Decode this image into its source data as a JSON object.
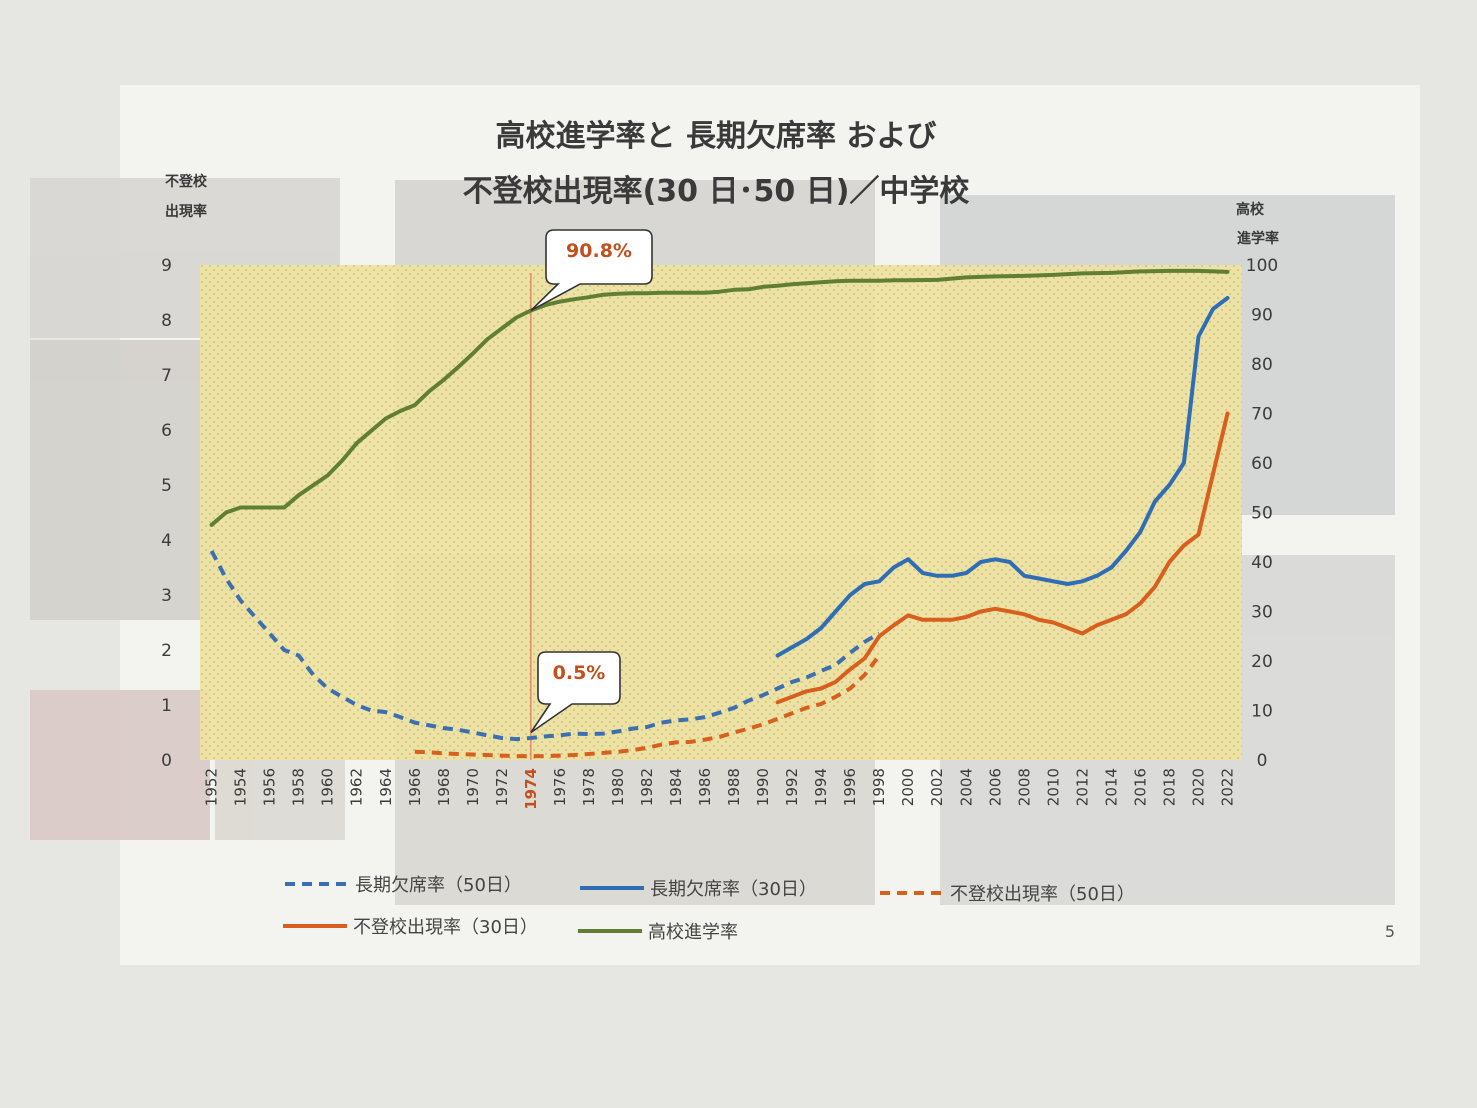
{
  "chart_data": {
    "type": "line",
    "title": [
      "高校進学率と 長期欠席率 および",
      "不登校出現率(30 日･50 日)／中学校"
    ],
    "y_left_label": [
      "不登校",
      "出現率"
    ],
    "y_right_label": [
      "高校",
      "進学率"
    ],
    "ylim_left": [
      0,
      9
    ],
    "ylim_right": [
      0,
      100
    ],
    "left_ticks": [
      0,
      1,
      2,
      3,
      4,
      5,
      6,
      7,
      8,
      9
    ],
    "right_ticks": [
      0,
      10,
      20,
      30,
      40,
      50,
      60,
      70,
      80,
      90,
      100
    ],
    "x_ticks": [
      1952,
      1954,
      1956,
      1958,
      1960,
      1962,
      1964,
      1966,
      1968,
      1970,
      1972,
      1974,
      1976,
      1978,
      1980,
      1982,
      1984,
      1986,
      1988,
      1990,
      1992,
      1994,
      1996,
      1998,
      2000,
      2002,
      2004,
      2006,
      2008,
      2010,
      2012,
      2014,
      2016,
      2018,
      2020,
      2022
    ],
    "highlight_year": 1974,
    "callouts": [
      {
        "text": "90.8%",
        "x": 1974,
        "y": 90.8,
        "axis": "right"
      },
      {
        "text": "0.5%",
        "x": 1974,
        "y": 0.5,
        "axis": "left"
      }
    ],
    "grid": false,
    "legend_position": "bottom",
    "series": [
      {
        "name": "長期欠席率（50日）",
        "axis": "left",
        "style": "dashed",
        "color": "#3c6fb0",
        "x": [
          1952,
          1953,
          1954,
          1955,
          1956,
          1957,
          1958,
          1959,
          1960,
          1961,
          1962,
          1963,
          1964,
          1965,
          1966,
          1967,
          1968,
          1969,
          1970,
          1971,
          1972,
          1973,
          1974,
          1975,
          1976,
          1977,
          1978,
          1979,
          1980,
          1981,
          1982,
          1983,
          1984,
          1985,
          1986,
          1987,
          1988,
          1989,
          1990,
          1991,
          1992,
          1993,
          1994,
          1995,
          1996,
          1997,
          1998
        ],
        "y": [
          3.8,
          3.3,
          2.9,
          2.6,
          2.3,
          2.0,
          1.9,
          1.55,
          1.3,
          1.15,
          1.0,
          0.9,
          0.87,
          0.78,
          0.68,
          0.63,
          0.58,
          0.55,
          0.5,
          0.45,
          0.4,
          0.38,
          0.4,
          0.43,
          0.45,
          0.48,
          0.47,
          0.48,
          0.52,
          0.57,
          0.6,
          0.68,
          0.72,
          0.74,
          0.78,
          0.86,
          0.95,
          1.08,
          1.18,
          1.3,
          1.42,
          1.5,
          1.62,
          1.73,
          1.95,
          2.15,
          2.3
        ]
      },
      {
        "name": "長期欠席率（30日）",
        "axis": "left",
        "style": "solid",
        "color": "#2f6db5",
        "x": [
          1991,
          1992,
          1993,
          1994,
          1995,
          1996,
          1997,
          1998,
          1999,
          2000,
          2001,
          2002,
          2003,
          2004,
          2005,
          2006,
          2007,
          2008,
          2009,
          2010,
          2011,
          2012,
          2013,
          2014,
          2015,
          2016,
          2017,
          2018,
          2019,
          2020,
          2021,
          2022
        ],
        "y": [
          1.9,
          2.05,
          2.2,
          2.4,
          2.7,
          3.0,
          3.2,
          3.25,
          3.5,
          3.65,
          3.4,
          3.35,
          3.35,
          3.4,
          3.6,
          3.65,
          3.6,
          3.35,
          3.3,
          3.25,
          3.2,
          3.25,
          3.35,
          3.5,
          3.8,
          4.15,
          4.7,
          5.0,
          5.4,
          7.7,
          8.2,
          8.4
        ]
      },
      {
        "name": "不登校出現率（50日）",
        "axis": "left",
        "style": "dashed",
        "color": "#d85f1e",
        "x": [
          1966,
          1967,
          1968,
          1969,
          1970,
          1971,
          1972,
          1973,
          1974,
          1975,
          1976,
          1977,
          1978,
          1979,
          1980,
          1981,
          1982,
          1983,
          1984,
          1985,
          1986,
          1987,
          1988,
          1989,
          1990,
          1991,
          1992,
          1993,
          1994,
          1995,
          1996,
          1997,
          1998
        ],
        "y": [
          0.15,
          0.14,
          0.12,
          0.11,
          0.1,
          0.09,
          0.08,
          0.07,
          0.07,
          0.07,
          0.08,
          0.09,
          0.11,
          0.13,
          0.15,
          0.18,
          0.22,
          0.28,
          0.32,
          0.33,
          0.37,
          0.42,
          0.5,
          0.57,
          0.65,
          0.75,
          0.85,
          0.95,
          1.02,
          1.15,
          1.3,
          1.55,
          1.9
        ]
      },
      {
        "name": "不登校出現率（30日）",
        "axis": "left",
        "style": "solid",
        "color": "#d85f1e",
        "x": [
          1991,
          1992,
          1993,
          1994,
          1995,
          1996,
          1997,
          1998,
          1999,
          2000,
          2001,
          2002,
          2003,
          2004,
          2005,
          2006,
          2007,
          2008,
          2009,
          2010,
          2011,
          2012,
          2013,
          2014,
          2015,
          2016,
          2017,
          2018,
          2019,
          2020,
          2021,
          2022
        ],
        "y": [
          1.05,
          1.15,
          1.25,
          1.3,
          1.42,
          1.65,
          1.85,
          2.25,
          2.45,
          2.63,
          2.55,
          2.55,
          2.55,
          2.6,
          2.7,
          2.75,
          2.7,
          2.65,
          2.55,
          2.5,
          2.4,
          2.3,
          2.45,
          2.55,
          2.65,
          2.85,
          3.15,
          3.6,
          3.9,
          4.1,
          5.2,
          6.3
        ]
      },
      {
        "name": "高校進学率",
        "axis": "right",
        "style": "solid",
        "color": "#617f34",
        "x": [
          1952,
          1953,
          1954,
          1955,
          1956,
          1957,
          1958,
          1959,
          1960,
          1961,
          1962,
          1963,
          1964,
          1965,
          1966,
          1967,
          1968,
          1969,
          1970,
          1971,
          1972,
          1973,
          1974,
          1975,
          1976,
          1977,
          1978,
          1979,
          1980,
          1981,
          1982,
          1983,
          1984,
          1985,
          1986,
          1987,
          1988,
          1989,
          1990,
          1991,
          1992,
          1993,
          1994,
          1995,
          1996,
          1997,
          1998,
          1999,
          2000,
          2002,
          2004,
          2006,
          2008,
          2010,
          2012,
          2014,
          2016,
          2018,
          2020,
          2022
        ],
        "y": [
          47.5,
          50,
          51,
          51,
          51,
          51,
          53.5,
          55.5,
          57.5,
          60.5,
          64,
          66.5,
          69,
          70.5,
          71.7,
          74.5,
          76.8,
          79.4,
          82.1,
          85,
          87.2,
          89.4,
          90.8,
          91.9,
          92.6,
          93.1,
          93.5,
          94,
          94.2,
          94.3,
          94.3,
          94.4,
          94.4,
          94.4,
          94.4,
          94.6,
          95.0,
          95.1,
          95.6,
          95.8,
          96.1,
          96.3,
          96.5,
          96.7,
          96.8,
          96.8,
          96.8,
          96.9,
          96.9,
          97.0,
          97.5,
          97.7,
          97.8,
          98.0,
          98.3,
          98.4,
          98.7,
          98.8,
          98.8,
          98.6
        ]
      }
    ]
  },
  "page_number": "5"
}
